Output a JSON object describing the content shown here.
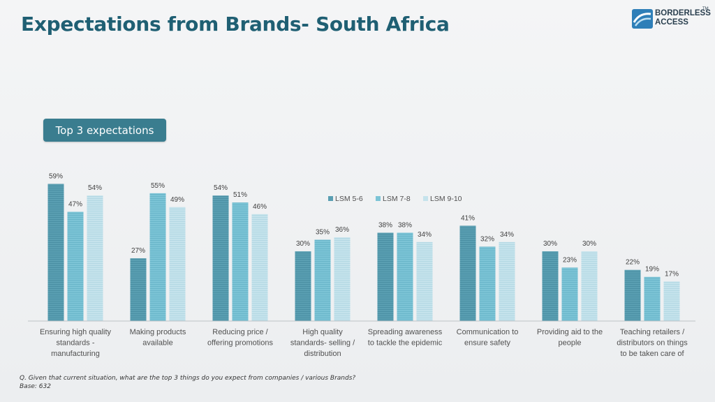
{
  "page": {
    "title": "Expectations from Brands- South Africa",
    "badge": "Top 3 expectations",
    "question": "Q. Given that current situation, what are the top 3 things do you expect from companies / various Brands?",
    "base": "Base: 632"
  },
  "logo": {
    "line1": "BORDERLESS",
    "line2": "ACCESS",
    "tm": "TM"
  },
  "chart_data": {
    "type": "bar",
    "categories": [
      [
        "Ensuring high quality",
        "standards -",
        "manufacturing"
      ],
      [
        "Making products",
        "available"
      ],
      [
        "Reducing price /",
        "offering promotions"
      ],
      [
        "High quality",
        "standards- selling /",
        "distribution"
      ],
      [
        "Spreading awareness",
        "to tackle the epidemic"
      ],
      [
        "Communication to",
        "ensure safety"
      ],
      [
        "Providing aid to the",
        "people"
      ],
      [
        "Teaching retailers /",
        "distributors on things",
        "to be taken care of"
      ]
    ],
    "series": [
      {
        "name": "LSM 5-6",
        "color": "#5a9fb2",
        "values": [
          59,
          27,
          54,
          30,
          38,
          41,
          30,
          22
        ]
      },
      {
        "name": "LSM 7-8",
        "color": "#7cc4d6",
        "values": [
          47,
          55,
          51,
          35,
          38,
          32,
          23,
          19
        ]
      },
      {
        "name": "LSM 9-10",
        "color": "#c5e3ec",
        "values": [
          54,
          49,
          46,
          36,
          34,
          34,
          30,
          17
        ]
      }
    ],
    "value_suffix": "%",
    "ylim": [
      0,
      60
    ],
    "grid": false,
    "legend": "top-center"
  }
}
